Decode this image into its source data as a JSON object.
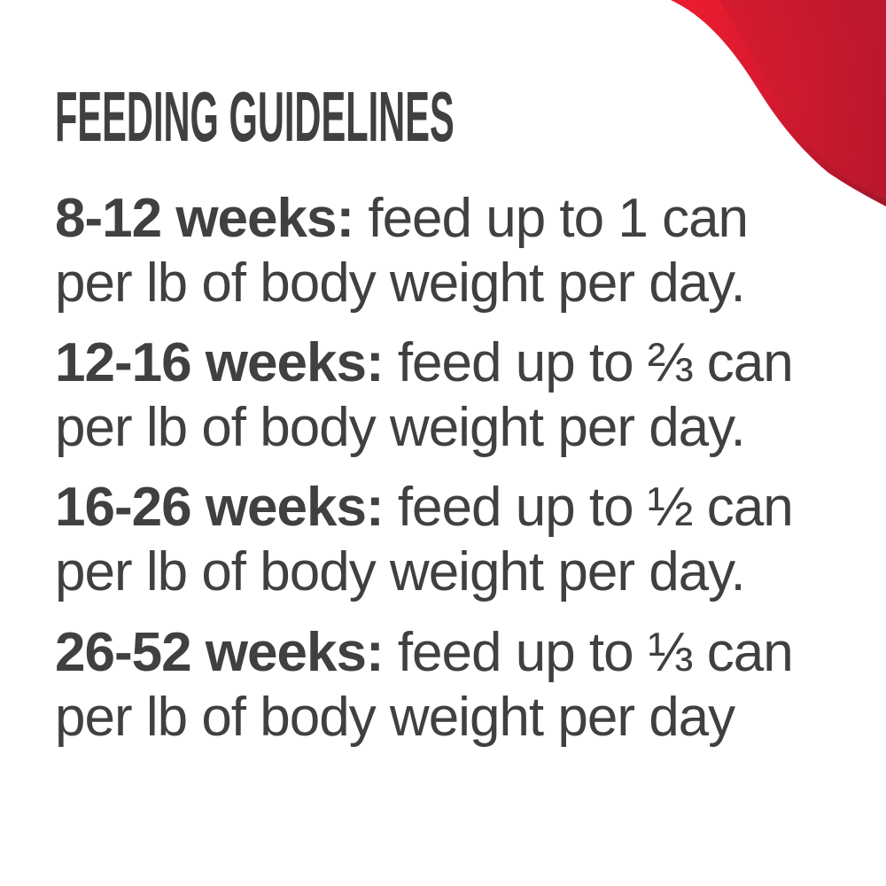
{
  "title": "FEEDING GUIDELINES",
  "colors": {
    "text": "#404040",
    "accent_red": "#e31b2f",
    "accent_dark_red": "#a3162b"
  },
  "guidelines": [
    {
      "age": "8-12 weeks:",
      "line1_rest": " feed up to 1 can",
      "line2": "per lb of body weight per day."
    },
    {
      "age": "12-16 weeks:",
      "line1_rest": " feed up to ⅔ can",
      "line2": "per lb of body weight per day."
    },
    {
      "age": "16-26 weeks:",
      "line1_rest": " feed up to ½ can",
      "line2": "per lb of body weight per day."
    },
    {
      "age": "26-52 weeks:",
      "line1_rest": " feed up to ⅓ can",
      "line2": "per lb of body weight per day"
    }
  ]
}
